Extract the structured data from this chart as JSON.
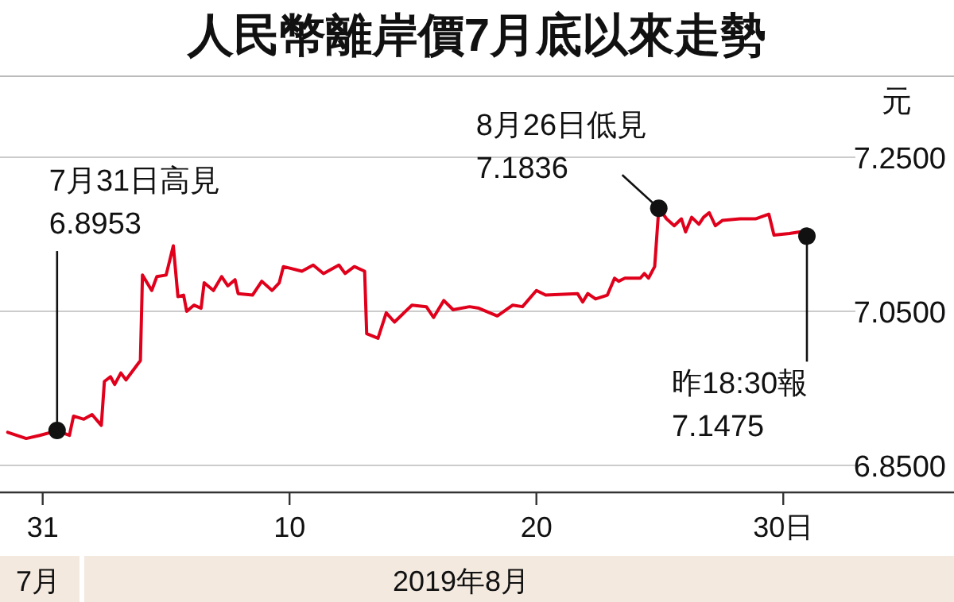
{
  "chart_data": {
    "type": "line",
    "title": "人民幣離岸價7月底以來走勢",
    "ylabel": "元",
    "xlabel": "2019年8月",
    "xlim": [
      "2019-07-29T06:30",
      "2019-09-05T22:00"
    ],
    "ylim": [
      6.815,
      7.355
    ],
    "xticks": [
      {
        "value": "2019-07-31",
        "label": "31"
      },
      {
        "value": "2019-08-10",
        "label": "10"
      },
      {
        "value": "2019-08-20",
        "label": "20"
      },
      {
        "value": "2019-08-30",
        "label": "30日"
      }
    ],
    "yticks": [
      {
        "value": 6.85,
        "label": "6.8500"
      },
      {
        "value": 7.05,
        "label": "7.0500"
      },
      {
        "value": 7.25,
        "label": "7.2500"
      }
    ],
    "grid": "y",
    "series": [
      {
        "color": "#e0001b",
        "x": [
          "2019-07-29T14:00",
          "2019-07-30T08:00",
          "2019-07-30T21:00",
          "2019-07-31T14:00",
          "2019-08-01T02:00",
          "2019-08-01T06:00",
          "2019-08-01T16:00",
          "2019-08-02T00:00",
          "2019-08-02T09:00",
          "2019-08-02T12:00",
          "2019-08-02T18:00",
          "2019-08-02T22:00",
          "2019-08-03T04:00",
          "2019-08-03T09:00",
          "2019-08-03T23:00",
          "2019-08-04T01:00",
          "2019-08-04T10:00",
          "2019-08-04T15:00",
          "2019-08-05T00:00",
          "2019-08-05T07:00",
          "2019-08-05T11:30",
          "2019-08-05T17:00",
          "2019-08-05T20:00",
          "2019-08-06T03:00",
          "2019-08-06T10:00",
          "2019-08-06T13:00",
          "2019-08-06T22:00",
          "2019-08-07T06:00",
          "2019-08-07T12:00",
          "2019-08-07T19:00",
          "2019-08-07T22:00",
          "2019-08-08T12:00",
          "2019-08-08T21:00",
          "2019-08-09T07:00",
          "2019-08-09T14:00",
          "2019-08-09T18:00",
          "2019-08-10T12:00",
          "2019-08-10T23:00",
          "2019-08-11T09:00",
          "2019-08-12T00:00",
          "2019-08-12T06:00",
          "2019-08-12T15:00",
          "2019-08-13T01:00",
          "2019-08-13T03:00",
          "2019-08-13T14:00",
          "2019-08-13T22:00",
          "2019-08-14T06:00",
          "2019-08-14T23:00",
          "2019-08-15T13:00",
          "2019-08-15T20:00",
          "2019-08-16T06:00",
          "2019-08-16T15:00",
          "2019-08-17T07:00",
          "2019-08-17T16:00",
          "2019-08-18T10:00",
          "2019-08-19T01:00",
          "2019-08-19T10:30",
          "2019-08-20T00:00",
          "2019-08-20T09:00",
          "2019-08-21T16:00",
          "2019-08-21T21:00",
          "2019-08-22T02:00",
          "2019-08-22T09:30",
          "2019-08-22T21:00",
          "2019-08-23T04:00",
          "2019-08-23T08:00",
          "2019-08-23T14:00",
          "2019-08-24T05:00",
          "2019-08-24T09:00",
          "2019-08-24T13:00",
          "2019-08-24T19:00",
          "2019-08-24T23:00",
          "2019-08-25T06:30",
          "2019-08-25T14:00",
          "2019-08-25T21:00",
          "2019-08-26T01:00",
          "2019-08-26T07:00",
          "2019-08-26T14:00",
          "2019-08-26T18:30",
          "2019-08-27T00:00",
          "2019-08-27T06:00",
          "2019-08-27T13:00",
          "2019-08-28T06:00",
          "2019-08-28T21:00",
          "2019-08-29T10:00",
          "2019-08-29T15:00",
          "2019-08-30T06:00",
          "2019-08-30T16:00",
          "2019-08-30T23:00"
        ],
        "values": [
          6.893,
          6.885,
          6.889,
          6.895,
          6.889,
          6.914,
          6.91,
          6.916,
          6.902,
          6.959,
          6.965,
          6.955,
          6.97,
          6.961,
          6.986,
          7.097,
          7.077,
          7.095,
          7.097,
          7.135,
          7.069,
          7.071,
          7.05,
          7.058,
          7.054,
          7.087,
          7.077,
          7.095,
          7.083,
          7.091,
          7.073,
          7.071,
          7.089,
          7.077,
          7.087,
          7.108,
          7.102,
          7.11,
          7.099,
          7.11,
          7.099,
          7.108,
          7.102,
          7.021,
          7.015,
          7.048,
          7.036,
          7.058,
          7.056,
          7.042,
          7.064,
          7.052,
          7.056,
          7.054,
          7.044,
          7.058,
          7.056,
          7.077,
          7.071,
          7.073,
          7.062,
          7.073,
          7.066,
          7.071,
          7.093,
          7.089,
          7.093,
          7.093,
          7.099,
          7.093,
          7.108,
          7.184,
          7.17,
          7.161,
          7.17,
          7.153,
          7.172,
          7.163,
          7.172,
          7.178,
          7.161,
          7.168,
          7.17,
          7.17,
          7.176,
          7.149,
          7.151,
          7.153,
          7.148
        ]
      }
    ],
    "annotations": [
      {
        "text": "7月31日高見\n6.8953",
        "x": "2019-07-31T14:00",
        "y": 6.8953
      },
      {
        "text": "8月26日低見\n7.1836",
        "x": "2019-08-24T23:00",
        "y": 7.1836
      },
      {
        "text": "昨18:30報\n7.1475",
        "x": "2019-08-30T23:00",
        "y": 7.1475
      },
      "7月"
    ]
  }
}
